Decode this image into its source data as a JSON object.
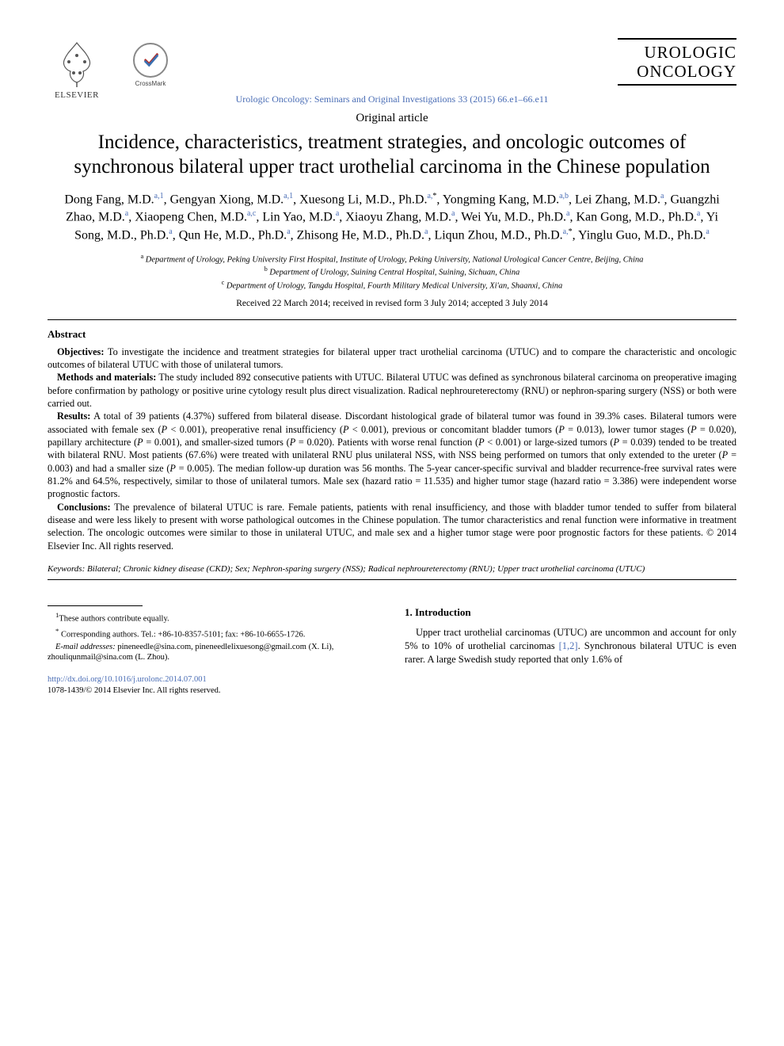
{
  "colors": {
    "link": "#4a6db5",
    "text": "#000000",
    "background": "#ffffff",
    "rule": "#000000"
  },
  "typography": {
    "body_font": "Times New Roman",
    "title_size_pt": 25,
    "author_size_pt": 16,
    "abstract_size_pt": 12.3,
    "footnote_size_pt": 10.5
  },
  "header": {
    "publisher": "ELSEVIER",
    "crossmark": "CrossMark",
    "journal_name_line1": "UROLOGIC",
    "journal_name_line2": "ONCOLOGY",
    "journal_ref": "Urologic Oncology: Seminars and Original Investigations 33 (2015) 66.e1–66.e11"
  },
  "article": {
    "type": "Original article",
    "title": "Incidence, characteristics, treatment strategies, and oncologic outcomes of synchronous bilateral upper tract urothelial carcinoma in the Chinese population",
    "authors_html": "Dong Fang, M.D.<sup>a,1</sup>, Gengyan Xiong, M.D.<sup>a,1</sup>, Xuesong Li, M.D., Ph.D.<sup>a,</sup><sup class='sup-plain'>*</sup>, Yongming Kang, M.D.<sup>a,b</sup>, Lei Zhang, M.D.<sup>a</sup>, Guangzhi Zhao, M.D.<sup>a</sup>, Xiaopeng Chen, M.D.<sup>a,c</sup>, Lin Yao, M.D.<sup>a</sup>, Xiaoyu Zhang, M.D.<sup>a</sup>, Wei Yu, M.D., Ph.D.<sup>a</sup>, Kan Gong, M.D., Ph.D.<sup>a</sup>, Yi Song, M.D., Ph.D.<sup>a</sup>, Qun He, M.D., Ph.D.<sup>a</sup>, Zhisong He, M.D., Ph.D.<sup>a</sup>, Liqun Zhou, M.D., Ph.D.<sup>a,</sup><sup class='sup-plain'>*</sup>, Yinglu Guo, M.D., Ph.D.<sup>a</sup>",
    "affiliations": [
      {
        "marker": "a",
        "text": "Department of Urology, Peking University First Hospital, Institute of Urology, Peking University, National Urological Cancer Centre, Beijing, China"
      },
      {
        "marker": "b",
        "text": "Department of Urology, Suining Central Hospital, Suining, Sichuan, China"
      },
      {
        "marker": "c",
        "text": "Department of Urology, Tangdu Hospital, Fourth Military Medical University, Xi'an, Shaanxi, China"
      }
    ],
    "dates": "Received 22 March 2014; received in revised form 3 July 2014; accepted 3 July 2014"
  },
  "abstract": {
    "heading": "Abstract",
    "objectives_label": "Objectives:",
    "objectives": "To investigate the incidence and treatment strategies for bilateral upper tract urothelial carcinoma (UTUC) and to compare the characteristic and oncologic outcomes of bilateral UTUC with those of unilateral tumors.",
    "methods_label": "Methods and materials:",
    "methods": "The study included 892 consecutive patients with UTUC. Bilateral UTUC was defined as synchronous bilateral carcinoma on preoperative imaging before confirmation by pathology or positive urine cytology result plus direct visualization. Radical nephroureterectomy (RNU) or nephron-sparing surgery (NSS) or both were carried out.",
    "results_label": "Results:",
    "results_html": "A total of 39 patients (4.37%) suffered from bilateral disease. Discordant histological grade of bilateral tumor was found in 39.3% cases. Bilateral tumors were associated with female sex (<i>P</i> &lt; 0.001), preoperative renal insufficiency (<i>P</i> &lt; 0.001), previous or concomitant bladder tumors (<i>P</i> = 0.013), lower tumor stages (<i>P</i> = 0.020), papillary architecture (<i>P</i> = 0.001), and smaller-sized tumors (<i>P</i> = 0.020). Patients with worse renal function (<i>P</i> &lt; 0.001) or large-sized tumors (<i>P</i> = 0.039) tended to be treated with bilateral RNU. Most patients (67.6%) were treated with unilateral RNU plus unilateral NSS, with NSS being performed on tumors that only extended to the ureter (<i>P</i> = 0.003) and had a smaller size (<i>P</i> = 0.005). The median follow-up duration was 56 months. The 5-year cancer-specific survival and bladder recurrence-free survival rates were 81.2% and 64.5%, respectively, similar to those of unilateral tumors. Male sex (hazard ratio = 11.535) and higher tumor stage (hazard ratio = 3.386) were independent worse prognostic factors.",
    "conclusions_label": "Conclusions:",
    "conclusions": "The prevalence of bilateral UTUC is rare. Female patients, patients with renal insufficiency, and those with bladder tumor tended to suffer from bilateral disease and were less likely to present with worse pathological outcomes in the Chinese population. The tumor characteristics and renal function were informative in treatment selection. The oncologic outcomes were similar to those in unilateral UTUC, and male sex and a higher tumor stage were poor prognostic factors for these patients.  © 2014 Elsevier Inc. All rights reserved."
  },
  "keywords": {
    "label": "Keywords:",
    "text": "Bilateral; Chronic kidney disease (CKD); Sex; Nephron-sparing surgery (NSS); Radical nephroureterectomy (RNU); Upper tract urothelial carcinoma (UTUC)"
  },
  "footnotes": {
    "equal": "These authors contribute equally.",
    "corresponding": "Corresponding authors. Tel.: +86-10-8357-5101; fax: +86-10-6655-1726.",
    "email_label": "E-mail addresses:",
    "emails": "pineneedle@sina.com, pineneedlelixuesong@gmail.com (X. Li), zhouliqunmail@sina.com (L. Zhou)."
  },
  "doi": {
    "url": "http://dx.doi.org/10.1016/j.urolonc.2014.07.001",
    "issn_line": "1078-1439/© 2014 Elsevier Inc. All rights reserved."
  },
  "intro": {
    "heading": "1. Introduction",
    "para_html": "Upper tract urothelial carcinomas (UTUC) are uncommon and account for only 5% to 10% of urothelial carcinomas <span class='ref-link'>[1,2]</span>. Synchronous bilateral UTUC is even rarer. A large Swedish study reported that only 1.6% of"
  }
}
